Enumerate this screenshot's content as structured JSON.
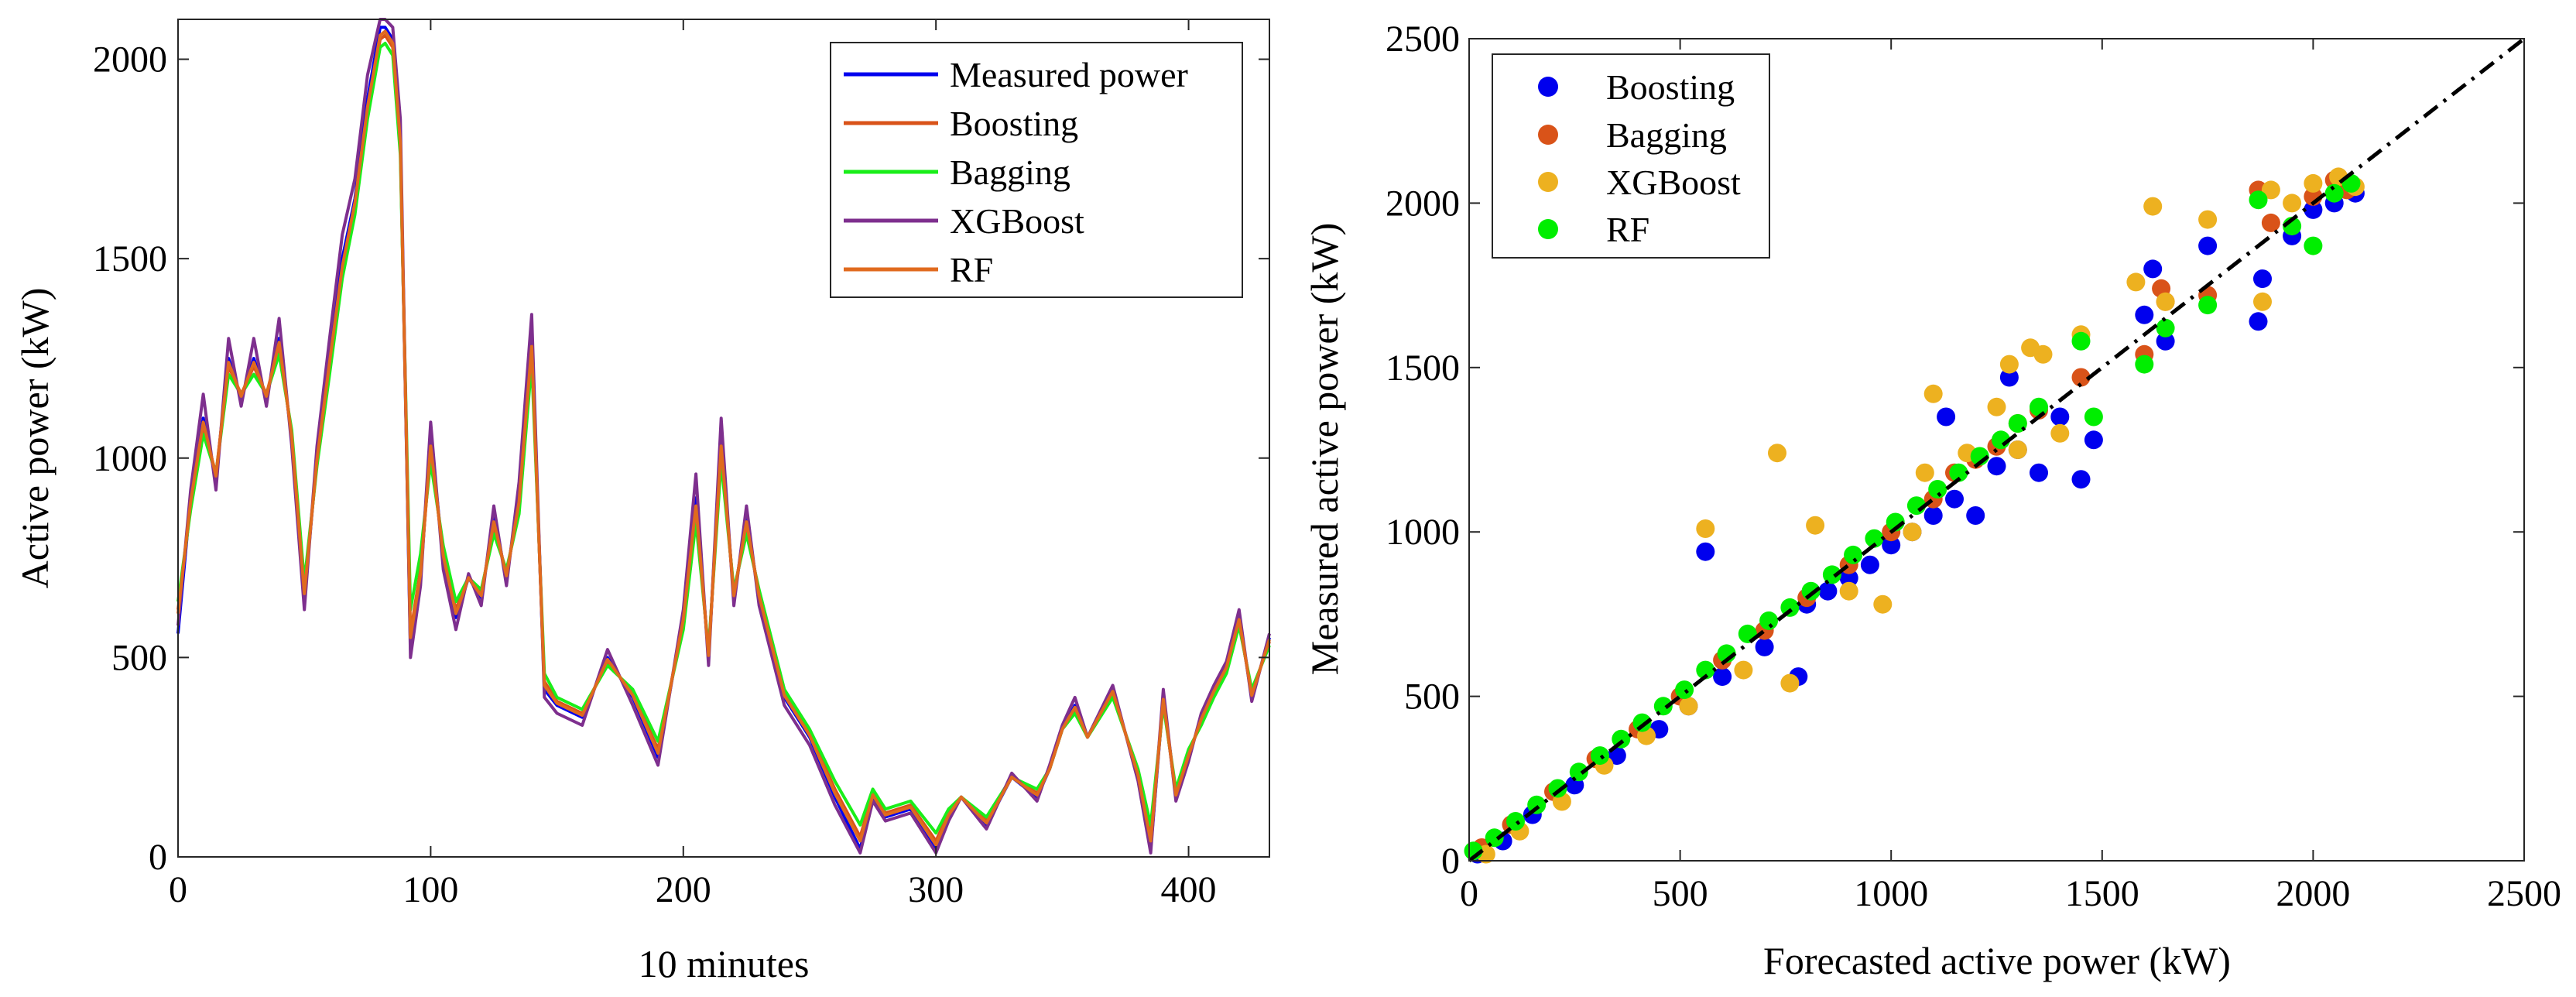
{
  "chart_data": [
    {
      "type": "line",
      "title": "",
      "xlabel": "10 minutes",
      "ylabel": "Active power (kW)",
      "xlim": [
        0,
        432
      ],
      "ylim": [
        0,
        2100
      ],
      "xticks": [
        0,
        100,
        200,
        300,
        400
      ],
      "yticks": [
        0,
        500,
        1000,
        1500,
        2000
      ],
      "xtick_labels": [
        "0",
        "100",
        "200",
        "300",
        "400"
      ],
      "ytick_labels": [
        "0",
        "500",
        "1000",
        "1500",
        "2000"
      ],
      "legend_position": "top-right",
      "x": [
        0,
        5,
        10,
        15,
        20,
        25,
        30,
        35,
        40,
        45,
        50,
        55,
        60,
        65,
        70,
        75,
        80,
        82,
        85,
        88,
        92,
        96,
        100,
        105,
        110,
        115,
        120,
        125,
        130,
        135,
        140,
        145,
        150,
        160,
        170,
        180,
        190,
        200,
        205,
        210,
        215,
        220,
        225,
        230,
        240,
        250,
        260,
        270,
        275,
        280,
        290,
        300,
        305,
        310,
        320,
        330,
        340,
        345,
        350,
        355,
        360,
        370,
        380,
        385,
        390,
        395,
        400,
        405,
        410,
        415,
        420,
        425,
        432
      ],
      "series": [
        {
          "name": "Measured power",
          "color": "#0000ee",
          "values": [
            560,
            900,
            1100,
            950,
            1250,
            1150,
            1250,
            1150,
            1300,
            1050,
            650,
            1000,
            1250,
            1500,
            1650,
            1900,
            2080,
            2080,
            2050,
            1800,
            520,
            700,
            1050,
            750,
            600,
            700,
            650,
            850,
            700,
            900,
            1300,
            420,
            380,
            350,
            500,
            400,
            250,
            600,
            900,
            500,
            1050,
            650,
            850,
            650,
            400,
            300,
            150,
            20,
            150,
            100,
            120,
            20,
            100,
            150,
            80,
            200,
            150,
            220,
            320,
            380,
            300,
            420,
            200,
            20,
            400,
            150,
            250,
            350,
            420,
            480,
            600,
            400,
            550
          ]
        },
        {
          "name": "Boosting",
          "color": "#d95319",
          "values": [
            620,
            880,
            1080,
            960,
            1230,
            1160,
            1230,
            1160,
            1280,
            1060,
            670,
            990,
            1230,
            1470,
            1630,
            1870,
            2050,
            2060,
            2030,
            1780,
            560,
            720,
            1020,
            760,
            620,
            700,
            660,
            830,
            710,
            880,
            1270,
            440,
            390,
            360,
            490,
            410,
            270,
            590,
            870,
            510,
            1020,
            660,
            830,
            660,
            410,
            310,
            170,
            50,
            160,
            110,
            130,
            40,
            110,
            150,
            90,
            200,
            160,
            220,
            320,
            370,
            300,
            410,
            210,
            50,
            390,
            160,
            260,
            340,
            410,
            470,
            590,
            410,
            540
          ]
        },
        {
          "name": "Bagging",
          "color": "#1aee1a",
          "values": [
            640,
            870,
            1060,
            960,
            1210,
            1160,
            1210,
            1160,
            1260,
            1070,
            690,
            980,
            1210,
            1450,
            1610,
            1850,
            2030,
            2040,
            2010,
            1760,
            620,
            760,
            990,
            780,
            640,
            700,
            670,
            810,
            720,
            860,
            1240,
            460,
            400,
            370,
            480,
            420,
            290,
            570,
            840,
            520,
            990,
            670,
            810,
            670,
            420,
            320,
            190,
            80,
            170,
            120,
            140,
            60,
            120,
            150,
            100,
            200,
            170,
            220,
            320,
            360,
            300,
            400,
            220,
            80,
            380,
            170,
            270,
            330,
            400,
            460,
            580,
            420,
            530
          ]
        },
        {
          "name": "XGBoost",
          "color": "#7e2f8e",
          "values": [
            580,
            920,
            1160,
            920,
            1300,
            1130,
            1300,
            1130,
            1350,
            1030,
            620,
            1030,
            1300,
            1560,
            1700,
            1960,
            2100,
            2100,
            2080,
            1850,
            500,
            680,
            1090,
            720,
            570,
            710,
            630,
            880,
            680,
            940,
            1360,
            400,
            360,
            330,
            520,
            380,
            230,
            620,
            960,
            480,
            1100,
            630,
            880,
            630,
            380,
            280,
            130,
            10,
            140,
            90,
            110,
            10,
            90,
            150,
            70,
            210,
            140,
            230,
            330,
            400,
            300,
            430,
            190,
            10,
            420,
            140,
            240,
            360,
            430,
            490,
            620,
            390,
            560
          ]
        },
        {
          "name": "RF",
          "color": "#e06a1e",
          "values": [
            610,
            890,
            1090,
            955,
            1240,
            1155,
            1240,
            1155,
            1290,
            1055,
            660,
            995,
            1240,
            1480,
            1640,
            1880,
            2060,
            2070,
            2040,
            1790,
            550,
            710,
            1030,
            755,
            610,
            700,
            655,
            840,
            705,
            890,
            1280,
            430,
            385,
            355,
            495,
            405,
            260,
            595,
            880,
            505,
            1030,
            655,
            840,
            655,
            405,
            305,
            160,
            40,
            155,
            105,
            125,
            30,
            105,
            150,
            85,
            200,
            155,
            220,
            320,
            375,
            300,
            415,
            205,
            40,
            395,
            155,
            255,
            345,
            415,
            475,
            595,
            405,
            545
          ]
        }
      ]
    },
    {
      "type": "scatter",
      "title": "",
      "xlabel": "Forecasted active power (kW)",
      "ylabel": "Measured active power (kW)",
      "xlim": [
        0,
        2500
      ],
      "ylim": [
        0,
        2500
      ],
      "xticks": [
        0,
        500,
        1000,
        1500,
        2000,
        2500
      ],
      "yticks": [
        0,
        500,
        1000,
        1500,
        2000,
        2500
      ],
      "xtick_labels": [
        "0",
        "500",
        "1000",
        "1500",
        "2000",
        "2500"
      ],
      "ytick_labels": [
        "0",
        "500",
        "1000",
        "1500",
        "2000",
        "2500"
      ],
      "legend_position": "top-left",
      "reference_line": {
        "style": "dash-dot",
        "color": "#000000",
        "x": [
          0,
          2500
        ],
        "y": [
          0,
          2500
        ]
      },
      "series": [
        {
          "name": "Boosting",
          "color": "#0000ee",
          "points": [
            [
              20,
              20
            ],
            [
              80,
              60
            ],
            [
              150,
              140
            ],
            [
              250,
              230
            ],
            [
              350,
              320
            ],
            [
              450,
              400
            ],
            [
              520,
              470
            ],
            [
              560,
              940
            ],
            [
              600,
              560
            ],
            [
              700,
              650
            ],
            [
              780,
              560
            ],
            [
              800,
              780
            ],
            [
              850,
              820
            ],
            [
              900,
              860
            ],
            [
              950,
              900
            ],
            [
              1000,
              960
            ],
            [
              1050,
              1000
            ],
            [
              1100,
              1050
            ],
            [
              1130,
              1350
            ],
            [
              1150,
              1100
            ],
            [
              1200,
              1050
            ],
            [
              1250,
              1200
            ],
            [
              1280,
              1470
            ],
            [
              1300,
              1250
            ],
            [
              1350,
              1180
            ],
            [
              1400,
              1350
            ],
            [
              1450,
              1160
            ],
            [
              1480,
              1280
            ],
            [
              1600,
              1660
            ],
            [
              1620,
              1800
            ],
            [
              1650,
              1580
            ],
            [
              1750,
              1870
            ],
            [
              1870,
              1640
            ],
            [
              1880,
              1770
            ],
            [
              1950,
              1900
            ],
            [
              2000,
              1980
            ],
            [
              2050,
              2000
            ],
            [
              2100,
              2030
            ]
          ]
        },
        {
          "name": "Bagging",
          "color": "#d95319",
          "points": [
            [
              30,
              40
            ],
            [
              100,
              110
            ],
            [
              200,
              210
            ],
            [
              300,
              310
            ],
            [
              400,
              400
            ],
            [
              500,
              500
            ],
            [
              600,
              610
            ],
            [
              700,
              700
            ],
            [
              800,
              800
            ],
            [
              900,
              900
            ],
            [
              1000,
              1000
            ],
            [
              1100,
              1100
            ],
            [
              1150,
              1180
            ],
            [
              1200,
              1220
            ],
            [
              1250,
              1260
            ],
            [
              1300,
              1330
            ],
            [
              1350,
              1370
            ],
            [
              1450,
              1470
            ],
            [
              1600,
              1540
            ],
            [
              1640,
              1740
            ],
            [
              1650,
              1700
            ],
            [
              1750,
              1720
            ],
            [
              1870,
              2040
            ],
            [
              1900,
              1940
            ],
            [
              2000,
              2020
            ],
            [
              2050,
              2070
            ],
            [
              2080,
              2040
            ]
          ]
        },
        {
          "name": "XGBoost",
          "color": "#edb120",
          "points": [
            [
              40,
              20
            ],
            [
              120,
              90
            ],
            [
              220,
              180
            ],
            [
              320,
              290
            ],
            [
              420,
              380
            ],
            [
              520,
              470
            ],
            [
              560,
              1010
            ],
            [
              650,
              580
            ],
            [
              730,
              1240
            ],
            [
              760,
              540
            ],
            [
              820,
              1020
            ],
            [
              900,
              820
            ],
            [
              980,
              780
            ],
            [
              1050,
              1000
            ],
            [
              1080,
              1180
            ],
            [
              1100,
              1420
            ],
            [
              1180,
              1240
            ],
            [
              1250,
              1380
            ],
            [
              1280,
              1510
            ],
            [
              1300,
              1250
            ],
            [
              1330,
              1560
            ],
            [
              1360,
              1540
            ],
            [
              1400,
              1300
            ],
            [
              1450,
              1600
            ],
            [
              1580,
              1760
            ],
            [
              1620,
              1990
            ],
            [
              1650,
              1700
            ],
            [
              1750,
              1950
            ],
            [
              1880,
              1700
            ],
            [
              1900,
              2040
            ],
            [
              1950,
              2000
            ],
            [
              2000,
              2060
            ],
            [
              2060,
              2080
            ],
            [
              2100,
              2050
            ]
          ]
        },
        {
          "name": "RF",
          "color": "#00ee00",
          "points": [
            [
              10,
              30
            ],
            [
              60,
              70
            ],
            [
              110,
              120
            ],
            [
              160,
              170
            ],
            [
              210,
              220
            ],
            [
              260,
              270
            ],
            [
              310,
              320
            ],
            [
              360,
              370
            ],
            [
              410,
              420
            ],
            [
              460,
              470
            ],
            [
              510,
              520
            ],
            [
              560,
              580
            ],
            [
              610,
              630
            ],
            [
              660,
              690
            ],
            [
              710,
              730
            ],
            [
              760,
              770
            ],
            [
              810,
              820
            ],
            [
              860,
              870
            ],
            [
              910,
              930
            ],
            [
              960,
              980
            ],
            [
              1010,
              1030
            ],
            [
              1060,
              1080
            ],
            [
              1110,
              1130
            ],
            [
              1160,
              1180
            ],
            [
              1210,
              1230
            ],
            [
              1260,
              1280
            ],
            [
              1300,
              1330
            ],
            [
              1350,
              1380
            ],
            [
              1450,
              1580
            ],
            [
              1480,
              1350
            ],
            [
              1600,
              1510
            ],
            [
              1650,
              1620
            ],
            [
              1750,
              1690
            ],
            [
              1870,
              2010
            ],
            [
              1950,
              1930
            ],
            [
              2000,
              1870
            ],
            [
              2050,
              2030
            ],
            [
              2090,
              2060
            ]
          ]
        }
      ]
    }
  ]
}
